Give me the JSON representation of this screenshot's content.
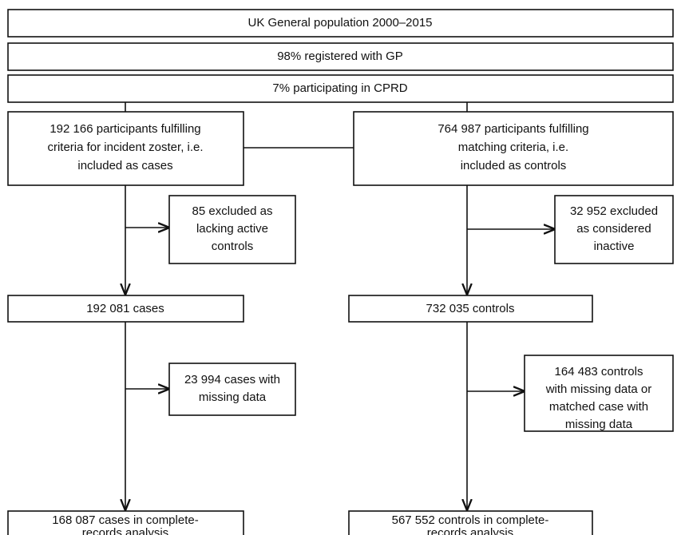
{
  "nodes": [
    {
      "lines": [
        "UK General population 2000–2015"
      ]
    },
    {
      "lines": [
        "98% registered with GP"
      ]
    },
    {
      "lines": [
        "7% participating in CPRD"
      ]
    },
    {
      "lines": [
        "192 166 participants fulfilling",
        "criteria for incident zoster, i.e.",
        "included as cases"
      ]
    },
    {
      "lines": [
        "764 987 participants fulfilling",
        "matching criteria, i.e.",
        "included as controls"
      ]
    },
    {
      "lines": [
        "85 excluded as",
        "lacking active",
        "controls"
      ]
    },
    {
      "lines": [
        "32 952 excluded",
        "as considered",
        "inactive"
      ]
    },
    {
      "lines": [
        "192 081 cases"
      ]
    },
    {
      "lines": [
        "732 035 controls"
      ]
    },
    {
      "lines": [
        "23 994 cases with",
        "missing data"
      ]
    },
    {
      "lines": [
        "164 483 controls",
        "with missing data or",
        "matched case with",
        "missing data"
      ]
    },
    {
      "lines": [
        "168 087 cases in complete-",
        "records analysis"
      ]
    },
    {
      "lines": [
        "567 552 controls in complete-",
        "records analysis"
      ]
    }
  ]
}
